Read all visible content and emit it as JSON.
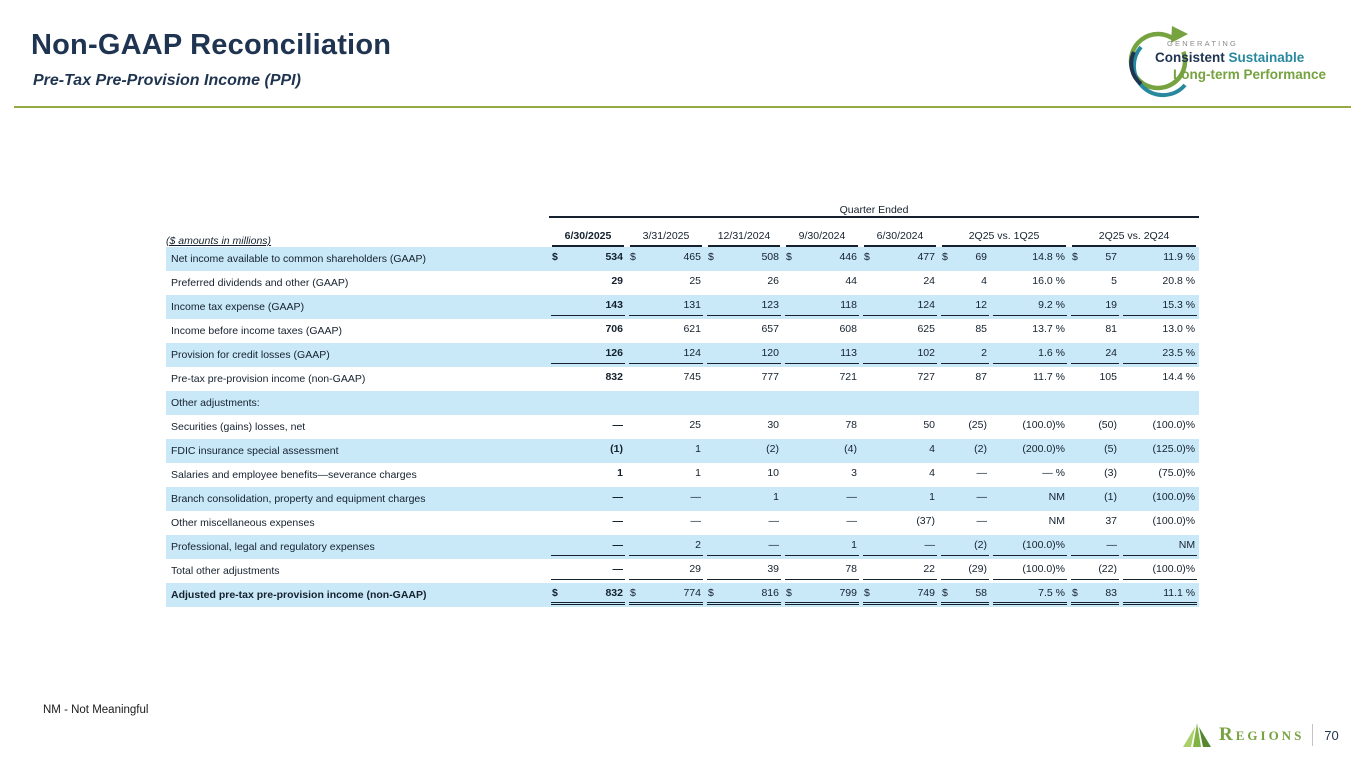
{
  "slide": {
    "title": "Non-GAAP Reconciliation",
    "subtitle": "Pre-Tax Pre-Provision Income (PPI)",
    "footnote": "NM - Not Meaningful",
    "page_number": "70"
  },
  "brand_tagline": {
    "line1": "GENERATING",
    "line2a": "Consistent",
    "line2b": "Sustainable",
    "line3": "Long-term Performance"
  },
  "footer": {
    "logo_text": "Regions"
  },
  "table": {
    "group_header": "Quarter Ended",
    "units_label": "($ amounts in millions)",
    "columns": [
      "6/30/2025",
      "3/31/2025",
      "12/31/2024",
      "9/30/2024",
      "6/30/2024",
      "2Q25 vs. 1Q25",
      "2Q25 vs. 2Q24"
    ],
    "rows": [
      {
        "label": "Net income available to common shareholders (GAAP)",
        "shaded": true,
        "dollar": true,
        "values": [
          "534",
          "465",
          "508",
          "446",
          "477",
          "69",
          "14.8 %",
          "57",
          "11.9 %"
        ]
      },
      {
        "label": "Preferred dividends and other (GAAP)",
        "shaded": false,
        "values": [
          "29",
          "25",
          "26",
          "44",
          "24",
          "4",
          "16.0 %",
          "5",
          "20.8 %"
        ]
      },
      {
        "label": "Income tax expense (GAAP)",
        "shaded": true,
        "underline": "single",
        "values": [
          "143",
          "131",
          "123",
          "118",
          "124",
          "12",
          "9.2 %",
          "19",
          "15.3 %"
        ]
      },
      {
        "label": "Income before income taxes (GAAP)",
        "shaded": false,
        "values": [
          "706",
          "621",
          "657",
          "608",
          "625",
          "85",
          "13.7 %",
          "81",
          "13.0 %"
        ]
      },
      {
        "label": "Provision for credit losses (GAAP)",
        "shaded": true,
        "underline": "single",
        "values": [
          "126",
          "124",
          "120",
          "113",
          "102",
          "2",
          "1.6 %",
          "24",
          "23.5 %"
        ]
      },
      {
        "label": "Pre-tax pre-provision income (non-GAAP)",
        "shaded": false,
        "values": [
          "832",
          "745",
          "777",
          "721",
          "727",
          "87",
          "11.7 %",
          "105",
          "14.4 %"
        ]
      },
      {
        "label": "Other adjustments:",
        "shaded": true,
        "section": true,
        "values": []
      },
      {
        "label": "Securities (gains) losses, net",
        "shaded": false,
        "values": [
          "—",
          "25",
          "30",
          "78",
          "50",
          "(25)",
          "(100.0)%",
          "(50)",
          "(100.0)%"
        ]
      },
      {
        "label": "FDIC insurance special assessment",
        "shaded": true,
        "values": [
          "(1)",
          "1",
          "(2)",
          "(4)",
          "4",
          "(2)",
          "(200.0)%",
          "(5)",
          "(125.0)%"
        ]
      },
      {
        "label": "Salaries and employee benefits—severance charges",
        "shaded": false,
        "values": [
          "1",
          "1",
          "10",
          "3",
          "4",
          "—",
          "— %",
          "(3)",
          "(75.0)%"
        ]
      },
      {
        "label": "Branch consolidation, property and equipment charges",
        "shaded": true,
        "values": [
          "—",
          "—",
          "1",
          "—",
          "1",
          "—",
          "NM",
          "(1)",
          "(100.0)%"
        ]
      },
      {
        "label": "Other miscellaneous expenses",
        "shaded": false,
        "values": [
          "—",
          "—",
          "—",
          "—",
          "(37)",
          "—",
          "NM",
          "37",
          "(100.0)%"
        ]
      },
      {
        "label": "Professional, legal and regulatory expenses",
        "shaded": true,
        "underline": "single",
        "values": [
          "—",
          "2",
          "—",
          "1",
          "—",
          "(2)",
          "(100.0)%",
          "—",
          "NM"
        ]
      },
      {
        "label": "Total other adjustments",
        "shaded": false,
        "underline": "single",
        "values": [
          "—",
          "29",
          "39",
          "78",
          "22",
          "(29)",
          "(100.0)%",
          "(22)",
          "(100.0)%"
        ]
      },
      {
        "label": "Adjusted pre-tax pre-provision income (non-GAAP)",
        "shaded": true,
        "bold": true,
        "dollar": true,
        "underline": "double",
        "values": [
          "832",
          "774",
          "816",
          "799",
          "749",
          "58",
          "7.5 %",
          "83",
          "11.1 %"
        ]
      }
    ]
  },
  "colors": {
    "navy": "#1f3450",
    "accent_green": "#93ab42",
    "regions_green": "#76a23f",
    "teal": "#28899e",
    "row_shade": "#c9e8f8"
  }
}
